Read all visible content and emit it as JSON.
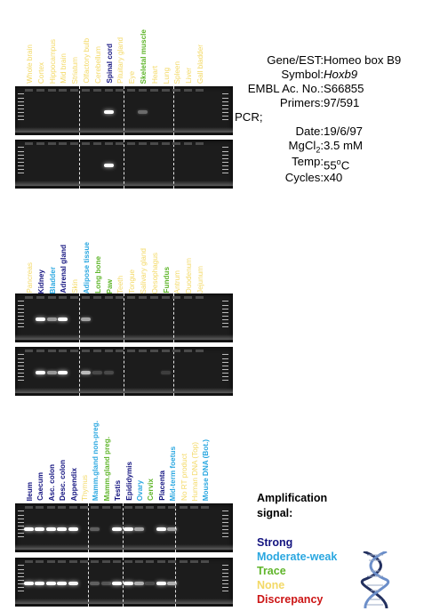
{
  "colors": {
    "strong": "#141480",
    "moderate": "#2aa7e0",
    "trace": "#5fb52a",
    "none": "#f3d966",
    "discrepancy": "#cc1515",
    "gel_background": "#1c1c1c"
  },
  "section1": {
    "tissues": [
      {
        "name": "Whole brain",
        "signal": "none"
      },
      {
        "name": "Cortex",
        "signal": "none"
      },
      {
        "name": "Hippocampus",
        "signal": "none"
      },
      {
        "name": "Mid brain",
        "signal": "none"
      },
      {
        "name": "Striatum",
        "signal": "none"
      },
      {
        "name": "Olfactory bulb",
        "signal": "none"
      },
      {
        "name": "Cerebellum",
        "signal": "none"
      },
      {
        "name": "Spinal cord",
        "signal": "strong"
      },
      {
        "name": "Pituitary gland",
        "signal": "none"
      },
      {
        "name": "Eye",
        "signal": "none"
      },
      {
        "name": "Skeletal muscle",
        "signal": "trace"
      },
      {
        "name": "Heart",
        "signal": "none"
      },
      {
        "name": "Lung",
        "signal": "none"
      },
      {
        "name": "Spleen",
        "signal": "none"
      },
      {
        "name": "Liver",
        "signal": "none"
      },
      {
        "name": "Gall bladder",
        "signal": "none"
      }
    ]
  },
  "section2": {
    "tissues": [
      {
        "name": "Pancreas",
        "signal": "none"
      },
      {
        "name": "Kidney",
        "signal": "strong"
      },
      {
        "name": "Bladder",
        "signal": "moderate"
      },
      {
        "name": "Adrenal gland",
        "signal": "strong"
      },
      {
        "name": "Skin",
        "signal": "none"
      },
      {
        "name": "Adipose tissue",
        "signal": "moderate"
      },
      {
        "name": "Long bone",
        "signal": "trace"
      },
      {
        "name": "Paw",
        "signal": "trace"
      },
      {
        "name": "Teeth",
        "signal": "none"
      },
      {
        "name": "Tongue",
        "signal": "none"
      },
      {
        "name": "Salivary gland",
        "signal": "none"
      },
      {
        "name": "Oesophagus",
        "signal": "none"
      },
      {
        "name": "Fundus",
        "signal": "trace"
      },
      {
        "name": "Antrum",
        "signal": "none"
      },
      {
        "name": "Duodenum",
        "signal": "none"
      },
      {
        "name": "Jejunum",
        "signal": "none"
      }
    ]
  },
  "section3": {
    "tissues": [
      {
        "name": "Ileum",
        "signal": "strong"
      },
      {
        "name": "Caecum",
        "signal": "strong"
      },
      {
        "name": "Asc. colon",
        "signal": "strong"
      },
      {
        "name": "Desc. colon",
        "signal": "strong"
      },
      {
        "name": "Appendix",
        "signal": "strong"
      },
      {
        "name": "Thymus",
        "signal": "none"
      },
      {
        "name": "Mamm.gland non-preg.",
        "signal": "moderate"
      },
      {
        "name": "Mamm.gland preg.",
        "signal": "trace"
      },
      {
        "name": "Testis",
        "signal": "strong"
      },
      {
        "name": "Epididymis",
        "signal": "strong"
      },
      {
        "name": "Ovary",
        "signal": "moderate"
      },
      {
        "name": "Cervix",
        "signal": "trace"
      },
      {
        "name": "Placenta",
        "signal": "strong"
      },
      {
        "name": "Mid-term foetus",
        "signal": "moderate"
      },
      {
        "name": "No RT product",
        "signal": "none"
      },
      {
        "name": "Human DNA (Top)",
        "signal": "none"
      },
      {
        "name": "Mouse DNA (Bot.)",
        "signal": "moderate"
      }
    ]
  },
  "info": {
    "gene_label": "Gene/EST:",
    "gene_value": "Homeo box B9",
    "symbol_label": "Symbol:",
    "symbol_value": "Hoxb9",
    "embl_label": "EMBL Ac. No.:",
    "embl_value": "S66855",
    "primers_label": "Primers:",
    "primers_value": "97/591",
    "pcr_label": "PCR;",
    "date_label": "Date:",
    "date_value": "19/6/97",
    "mgcl_label_main": "MgCl",
    "mgcl_label_sub": "2",
    "mgcl_label_tail": ":",
    "mgcl_value": "3.5 mM",
    "temp_label": "Temp:",
    "temp_value_num": "55",
    "temp_value_sup": "o",
    "temp_value_unit": "C",
    "cycles_label": "Cycles:",
    "cycles_value": "x40"
  },
  "legend": {
    "title_line1": "Amplification",
    "title_line2": "signal:",
    "items": [
      {
        "label": "Strong",
        "key": "strong"
      },
      {
        "label": "Moderate-weak",
        "key": "moderate"
      },
      {
        "label": "Trace",
        "key": "trace"
      },
      {
        "label": "None",
        "key": "none"
      },
      {
        "label": "Discrepancy",
        "key": "discrepancy"
      }
    ]
  },
  "gels": {
    "section1": [
      [
        0,
        0,
        0,
        0,
        0,
        0,
        0,
        1.0,
        0,
        0,
        0.35,
        0,
        0,
        0,
        0,
        0
      ],
      [
        0,
        0,
        0,
        0,
        0,
        0,
        0,
        1.0,
        0,
        0,
        0,
        0,
        0,
        0,
        0,
        0
      ]
    ],
    "section2": [
      [
        0,
        1.0,
        0.55,
        1.0,
        0,
        0.6,
        0,
        0,
        0,
        0,
        0,
        0,
        0,
        0,
        0,
        0
      ],
      [
        0,
        1.0,
        0.55,
        1.0,
        0,
        0.7,
        0.2,
        0.2,
        0,
        0,
        0,
        0,
        0.15,
        0,
        0,
        0
      ]
    ],
    "section3": [
      [
        1.0,
        1.0,
        1.0,
        1.0,
        1.0,
        0,
        0.3,
        0,
        1.0,
        1.0,
        0.6,
        0,
        1.0,
        0.6,
        0,
        0,
        0
      ],
      [
        1.0,
        1.0,
        1.0,
        1.0,
        0.95,
        0,
        0.3,
        0.25,
        1.0,
        1.0,
        0.65,
        0.2,
        1.0,
        0.65,
        0,
        0,
        0
      ]
    ]
  }
}
